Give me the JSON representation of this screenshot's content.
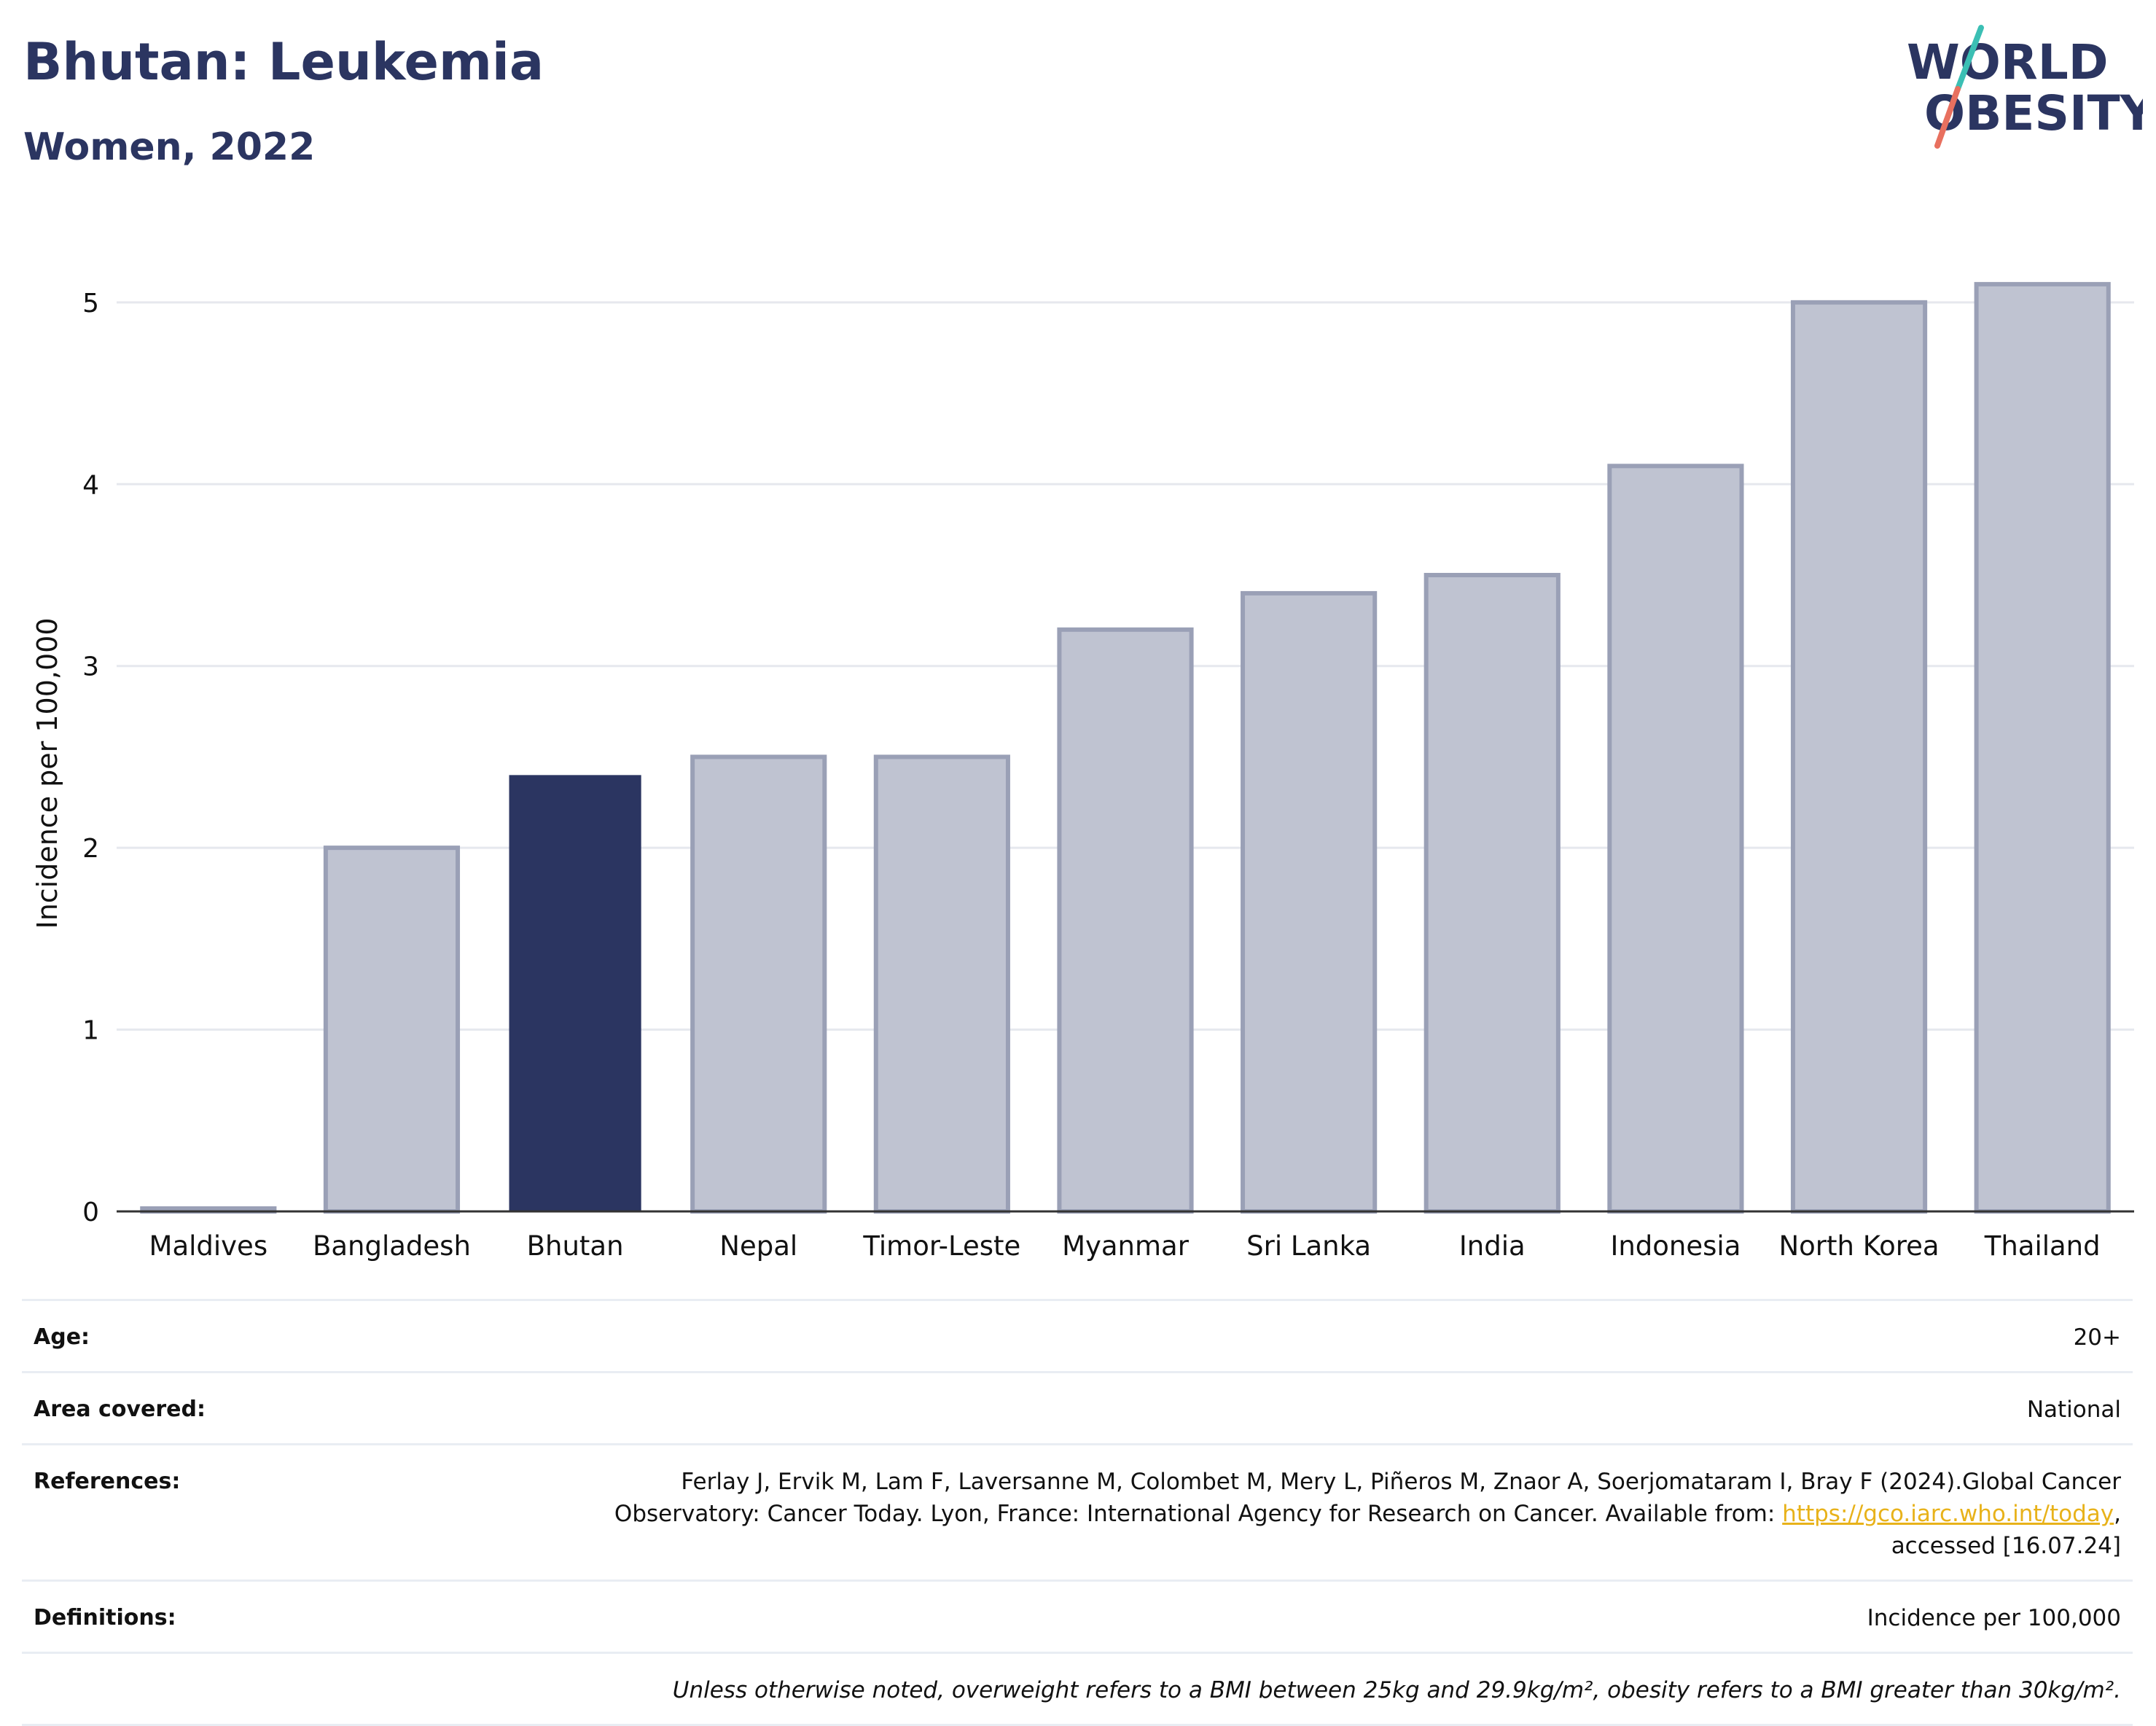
{
  "header": {
    "title": "Bhutan: Leukemia",
    "subtitle": "Women, 2022",
    "logo_line1": "WORLD",
    "logo_line2": "OBESITY"
  },
  "colors": {
    "title": "#2b3561",
    "highlight_bar": "#2b3561",
    "other_bar": "#bfc3d1",
    "other_bar_border": "#9aa0b6",
    "logo_slash_teal": "#3bbfb4",
    "logo_slash_red": "#e8705f",
    "link": "#e8b21a"
  },
  "chart_data": {
    "type": "bar",
    "categories": [
      "Maldives",
      "Bangladesh",
      "Bhutan",
      "Nepal",
      "Timor-Leste",
      "Myanmar",
      "Sri Lanka",
      "India",
      "Indonesia",
      "North Korea",
      "Thailand"
    ],
    "values": [
      0.0,
      2.0,
      2.4,
      2.5,
      2.5,
      3.2,
      3.4,
      3.5,
      4.1,
      5.0,
      5.1
    ],
    "highlight": "Bhutan",
    "ylabel": "Incidence per 100,000",
    "xlabel": "",
    "ylim": [
      0,
      5.3
    ],
    "yticks": [
      0,
      1,
      2,
      3,
      4,
      5
    ],
    "grid": true
  },
  "info": {
    "age_label": "Age:",
    "age_value": "20+",
    "area_label": "Area covered:",
    "area_value": "National",
    "references_label": "References:",
    "references_line1": "Ferlay J, Ervik M, Lam F, Laversanne M, Colombet M, Mery L, Piñeros M, Znaor A, Soerjomataram I, Bray F (2024).Global Cancer",
    "references_line2_pre": "Observatory: Cancer Today. Lyon, France: International Agency for Research on Cancer. Available from: ",
    "references_link": "https://gco.iarc.who.int/today",
    "references_line2_post": ",",
    "references_line3": "accessed [16.07.24]",
    "definitions_label": "Definitions:",
    "definitions_value": "Incidence per 100,000",
    "note": "Unless otherwise noted, overweight refers to a BMI between 25kg and 29.9kg/m², obesity refers to a BMI greater than 30kg/m²."
  }
}
